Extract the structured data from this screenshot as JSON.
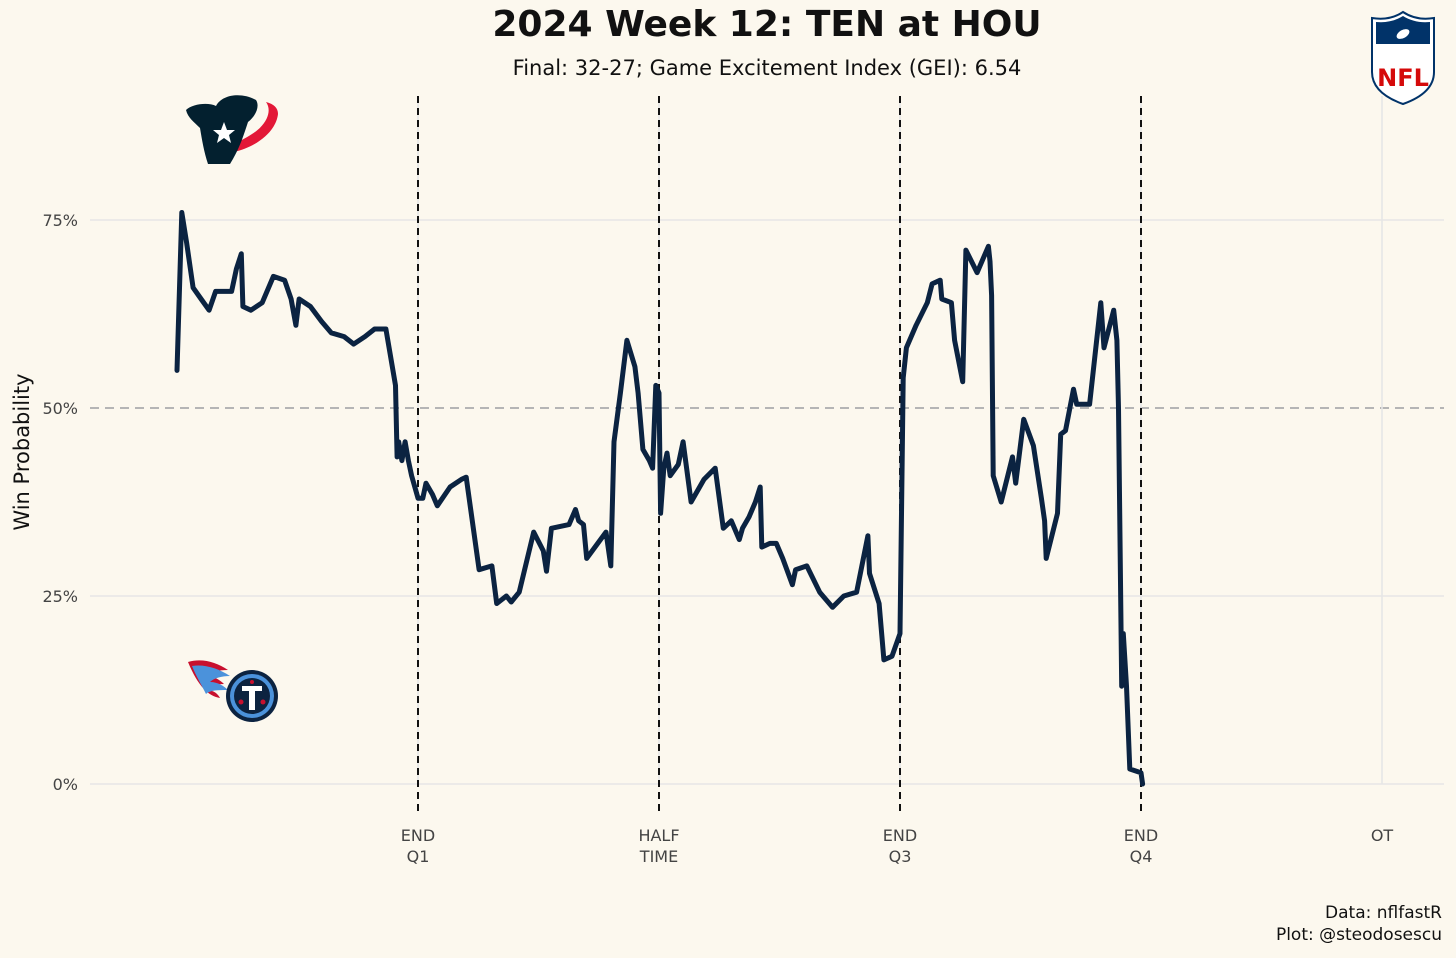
{
  "chart_data": {
    "type": "line",
    "title": "2024 Week 12: TEN at HOU",
    "subtitle": "Final: 32-27; Game Excitement Index (GEI): 6.54",
    "ylabel": "Win Probability",
    "xlabel": "",
    "ylim": [
      0,
      1
    ],
    "y_ticks": [
      {
        "value": 0,
        "label": "0%"
      },
      {
        "value": 0.25,
        "label": "25%"
      },
      {
        "value": 0.5,
        "label": "50%"
      },
      {
        "value": 0.75,
        "label": "75%"
      }
    ],
    "x_unit": "game minutes",
    "xlim": [
      -13,
      73
    ],
    "x_ticks": [
      {
        "value": 15,
        "line1": "END",
        "line2": "Q1"
      },
      {
        "value": 30,
        "line1": "HALF",
        "line2": "TIME"
      },
      {
        "value": 45,
        "line1": "END",
        "line2": "Q3"
      },
      {
        "value": 60,
        "line1": "END",
        "line2": "Q4"
      },
      {
        "value": 75,
        "line1": "OT",
        "line2": ""
      }
    ],
    "period_markers": [
      15,
      30,
      45,
      60
    ],
    "reference_line": 0.5,
    "grid": true,
    "series": [
      {
        "color": "#0b2341",
        "points": [
          [
            0.0,
            0.55
          ],
          [
            0.3,
            0.76
          ],
          [
            0.6,
            0.72
          ],
          [
            1.0,
            0.66
          ],
          [
            1.5,
            0.645
          ],
          [
            2.0,
            0.63
          ],
          [
            2.4,
            0.655
          ],
          [
            3.0,
            0.655
          ],
          [
            3.4,
            0.655
          ],
          [
            3.7,
            0.685
          ],
          [
            4.0,
            0.705
          ],
          [
            4.1,
            0.635
          ],
          [
            4.6,
            0.63
          ],
          [
            5.3,
            0.64
          ],
          [
            6.0,
            0.675
          ],
          [
            6.7,
            0.67
          ],
          [
            7.1,
            0.645
          ],
          [
            7.4,
            0.61
          ],
          [
            7.6,
            0.645
          ],
          [
            8.3,
            0.635
          ],
          [
            9.0,
            0.615
          ],
          [
            9.6,
            0.6
          ],
          [
            10.4,
            0.595
          ],
          [
            11.0,
            0.585
          ],
          [
            11.7,
            0.595
          ],
          [
            12.3,
            0.605
          ],
          [
            13.0,
            0.605
          ],
          [
            13.6,
            0.53
          ],
          [
            13.7,
            0.435
          ],
          [
            13.8,
            0.455
          ],
          [
            14.0,
            0.43
          ],
          [
            14.2,
            0.455
          ],
          [
            14.4,
            0.43
          ],
          [
            14.6,
            0.41
          ],
          [
            15.0,
            0.38
          ],
          [
            15.3,
            0.38
          ],
          [
            15.5,
            0.4
          ],
          [
            15.9,
            0.385
          ],
          [
            16.2,
            0.37
          ],
          [
            17.0,
            0.395
          ],
          [
            17.7,
            0.405
          ],
          [
            18.0,
            0.408
          ],
          [
            18.8,
            0.285
          ],
          [
            19.6,
            0.29
          ],
          [
            19.9,
            0.24
          ],
          [
            20.2,
            0.245
          ],
          [
            20.5,
            0.25
          ],
          [
            20.8,
            0.242
          ],
          [
            21.3,
            0.255
          ],
          [
            22.2,
            0.335
          ],
          [
            22.8,
            0.31
          ],
          [
            23.0,
            0.283
          ],
          [
            23.3,
            0.34
          ],
          [
            24.4,
            0.345
          ],
          [
            24.8,
            0.365
          ],
          [
            25.0,
            0.35
          ],
          [
            25.3,
            0.345
          ],
          [
            25.5,
            0.3
          ],
          [
            26.7,
            0.335
          ],
          [
            27.0,
            0.29
          ],
          [
            27.2,
            0.455
          ],
          [
            27.6,
            0.52
          ],
          [
            28.0,
            0.59
          ],
          [
            28.5,
            0.555
          ],
          [
            28.7,
            0.52
          ],
          [
            29.0,
            0.445
          ],
          [
            29.4,
            0.43
          ],
          [
            29.6,
            0.42
          ],
          [
            29.8,
            0.53
          ],
          [
            30.0,
            0.52
          ],
          [
            30.1,
            0.36
          ],
          [
            30.3,
            0.42
          ],
          [
            30.5,
            0.44
          ],
          [
            30.7,
            0.41
          ],
          [
            31.2,
            0.425
          ],
          [
            31.5,
            0.455
          ],
          [
            32.0,
            0.375
          ],
          [
            32.8,
            0.405
          ],
          [
            33.5,
            0.42
          ],
          [
            34.0,
            0.34
          ],
          [
            34.5,
            0.35
          ],
          [
            35.0,
            0.325
          ],
          [
            35.2,
            0.34
          ],
          [
            35.6,
            0.355
          ],
          [
            36.0,
            0.375
          ],
          [
            36.3,
            0.395
          ],
          [
            36.4,
            0.315
          ],
          [
            36.9,
            0.32
          ],
          [
            37.3,
            0.32
          ],
          [
            37.7,
            0.3
          ],
          [
            38.3,
            0.265
          ],
          [
            38.5,
            0.285
          ],
          [
            39.2,
            0.29
          ],
          [
            40.0,
            0.255
          ],
          [
            40.8,
            0.235
          ],
          [
            41.5,
            0.25
          ],
          [
            42.3,
            0.255
          ],
          [
            43.0,
            0.33
          ],
          [
            43.1,
            0.28
          ],
          [
            43.7,
            0.24
          ],
          [
            44.0,
            0.165
          ],
          [
            44.5,
            0.17
          ],
          [
            45.0,
            0.2
          ],
          [
            45.2,
            0.54
          ],
          [
            45.4,
            0.58
          ],
          [
            46.0,
            0.61
          ],
          [
            46.7,
            0.64
          ],
          [
            47.0,
            0.665
          ],
          [
            47.5,
            0.67
          ],
          [
            47.6,
            0.645
          ],
          [
            48.2,
            0.64
          ],
          [
            48.4,
            0.59
          ],
          [
            48.9,
            0.535
          ],
          [
            49.1,
            0.71
          ],
          [
            49.8,
            0.68
          ],
          [
            50.5,
            0.715
          ],
          [
            50.6,
            0.695
          ],
          [
            50.7,
            0.65
          ],
          [
            50.8,
            0.41
          ],
          [
            51.3,
            0.375
          ],
          [
            52.0,
            0.435
          ],
          [
            52.2,
            0.4
          ],
          [
            52.7,
            0.485
          ],
          [
            53.3,
            0.45
          ],
          [
            53.8,
            0.38
          ],
          [
            54.0,
            0.35
          ],
          [
            54.1,
            0.3
          ],
          [
            54.8,
            0.36
          ],
          [
            55.0,
            0.465
          ],
          [
            55.3,
            0.47
          ],
          [
            55.8,
            0.525
          ],
          [
            56.0,
            0.505
          ],
          [
            56.8,
            0.505
          ],
          [
            57.5,
            0.64
          ],
          [
            57.7,
            0.58
          ],
          [
            58.3,
            0.63
          ],
          [
            58.5,
            0.59
          ],
          [
            58.6,
            0.5
          ],
          [
            58.8,
            0.13
          ],
          [
            58.9,
            0.2
          ],
          [
            59.1,
            0.13
          ],
          [
            59.3,
            0.02
          ],
          [
            60.0,
            0.015
          ],
          [
            60.1,
            0.0
          ]
        ]
      }
    ]
  },
  "teams": {
    "home": {
      "name": "HOU",
      "primary": "#03202f",
      "accent": "#e31837",
      "logo": "texans-logo"
    },
    "away": {
      "name": "TEN",
      "primary": "#0c2340",
      "accent": "#4b92db",
      "logo": "titans-logo"
    }
  },
  "league_logo": {
    "name": "nfl-shield-logo",
    "text": "NFL",
    "color_blue": "#013369",
    "color_red": "#d50a0a"
  },
  "caption": {
    "line1": "Data: nflfastR",
    "line2": "Plot: @steodosescu"
  }
}
